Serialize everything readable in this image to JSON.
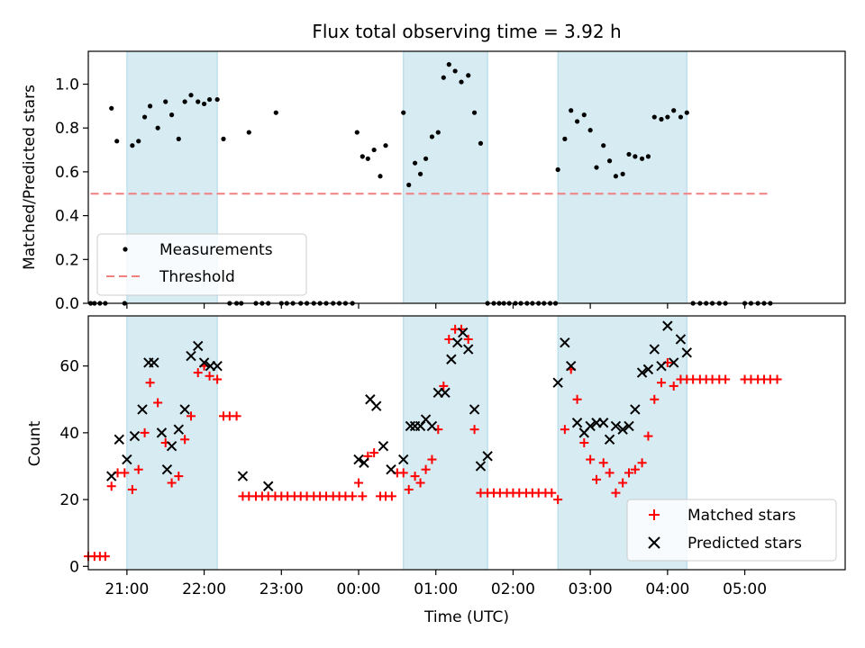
{
  "chart_data": [
    {
      "type": "scatter",
      "title": "Flux total observing time = 3.92 h",
      "xlabel": "",
      "ylabel": "Matched/Predicted stars",
      "xlim": [
        -3.5,
        6.3
      ],
      "ylim": [
        0,
        1.15
      ],
      "yticks": [
        0.0,
        0.2,
        0.4,
        0.6,
        0.8,
        1.0
      ],
      "ytick_labels": [
        "0.0",
        "0.2",
        "0.4",
        "0.6",
        "0.8",
        "1.0"
      ],
      "shaded_intervals": [
        [
          -3.0,
          -1.83
        ],
        [
          0.58,
          1.67
        ],
        [
          2.58,
          4.25
        ]
      ],
      "shade_color": "#add8e6",
      "legend": {
        "placement": "bottom-left",
        "entries": [
          "Measurements",
          "Threshold"
        ]
      },
      "threshold": {
        "name": "Threshold",
        "value": 0.5,
        "x_range": [
          -3.47,
          5.35
        ],
        "color": "#f08080"
      },
      "series": [
        {
          "name": "Measurements",
          "marker": "dot",
          "color": "#000000",
          "x": [
            -3.47,
            -3.42,
            -3.35,
            -3.28,
            -3.2,
            -3.13,
            -3.03,
            -2.93,
            -2.85,
            -2.77,
            -2.7,
            -2.6,
            -2.5,
            -2.42,
            -2.33,
            -2.25,
            -2.17,
            -2.08,
            -2.0,
            -1.93,
            -1.83,
            -1.75,
            -1.67,
            -1.58,
            -1.52,
            -1.42,
            -1.33,
            -1.25,
            -1.17,
            -1.07,
            -1.0,
            -0.93,
            -0.85,
            -0.75,
            -0.67,
            -0.58,
            -0.5,
            -0.42,
            -0.33,
            -0.25,
            -0.17,
            -0.08,
            -0.02,
            0.05,
            0.12,
            0.2,
            0.28,
            0.35,
            0.58,
            0.65,
            0.73,
            0.8,
            0.87,
            0.95,
            1.03,
            1.1,
            1.17,
            1.25,
            1.33,
            1.42,
            1.5,
            1.58,
            1.67,
            1.75,
            1.82,
            1.88,
            1.95,
            2.03,
            2.1,
            2.18,
            2.25,
            2.33,
            2.4,
            2.48,
            2.55,
            2.58,
            2.67,
            2.75,
            2.83,
            2.92,
            3.0,
            3.08,
            3.17,
            3.25,
            3.33,
            3.42,
            3.5,
            3.58,
            3.67,
            3.75,
            3.83,
            3.92,
            4.0,
            4.08,
            4.17,
            4.25,
            4.33,
            4.42,
            4.5,
            4.58,
            4.67,
            4.75,
            5.0,
            5.08,
            5.17,
            5.25,
            5.33
          ],
          "y": [
            0,
            0,
            0,
            0,
            0.89,
            0.74,
            0,
            0.72,
            0.74,
            0.85,
            0.9,
            0.8,
            0.92,
            0.86,
            0.75,
            0.92,
            0.95,
            0.92,
            0.91,
            0.93,
            0.93,
            0.75,
            0,
            0,
            0,
            0.78,
            0,
            0,
            0,
            0.87,
            0,
            0,
            0,
            0,
            0,
            0,
            0,
            0,
            0,
            0,
            0,
            0,
            0.78,
            0.67,
            0.66,
            0.7,
            0.58,
            0.72,
            0.87,
            0.54,
            0.64,
            0.59,
            0.66,
            0.76,
            0.78,
            1.03,
            1.09,
            1.06,
            1.01,
            1.04,
            0.87,
            0.73,
            0,
            0,
            0,
            0,
            0,
            0,
            0,
            0,
            0,
            0,
            0,
            0,
            0,
            0.61,
            0.75,
            0.88,
            0.83,
            0.86,
            0.79,
            0.62,
            0.72,
            0.65,
            0.58,
            0.59,
            0.68,
            0.67,
            0.66,
            0.67,
            0.85,
            0.84,
            0.85,
            0.88,
            0.85,
            0.87,
            0,
            0,
            0,
            0,
            0,
            0,
            0,
            0,
            0,
            0,
            0
          ]
        }
      ]
    },
    {
      "type": "scatter",
      "title": "",
      "xlabel": "Time (UTC)",
      "ylabel": "Count",
      "xlim": [
        -3.5,
        6.3
      ],
      "ylim": [
        -1,
        75
      ],
      "yticks": [
        0,
        20,
        40,
        60
      ],
      "ytick_labels": [
        "0",
        "20",
        "40",
        "60"
      ],
      "xticks": [
        -3,
        -2,
        -1,
        0,
        1,
        2,
        3,
        4,
        5
      ],
      "xtick_labels": [
        "21:00",
        "22:00",
        "23:00",
        "00:00",
        "01:00",
        "02:00",
        "03:00",
        "04:00",
        "05:00"
      ],
      "shaded_intervals": [
        [
          -3.0,
          -1.83
        ],
        [
          0.58,
          1.67
        ],
        [
          2.58,
          4.25
        ]
      ],
      "shade_color": "#add8e6",
      "legend": {
        "placement": "bottom-right",
        "entries": [
          "Matched stars",
          "Predicted stars"
        ]
      },
      "series": [
        {
          "name": "Matched stars",
          "marker": "plus",
          "color": "#ff0000",
          "x": [
            -3.5,
            -3.42,
            -3.35,
            -3.28,
            -3.2,
            -3.12,
            -3.03,
            -2.93,
            -2.85,
            -2.77,
            -2.7,
            -2.6,
            -2.5,
            -2.42,
            -2.33,
            -2.25,
            -2.17,
            -2.08,
            -2.0,
            -1.93,
            -1.83,
            -1.75,
            -1.67,
            -1.58,
            -1.5,
            -1.42,
            -1.33,
            -1.25,
            -1.17,
            -1.08,
            -1.0,
            -0.92,
            -0.83,
            -0.75,
            -0.67,
            -0.58,
            -0.5,
            -0.42,
            -0.33,
            -0.25,
            -0.17,
            -0.08,
            0.0,
            0.05,
            0.12,
            0.2,
            0.28,
            0.35,
            0.43,
            0.5,
            0.58,
            0.65,
            0.73,
            0.8,
            0.87,
            0.95,
            1.03,
            1.1,
            1.17,
            1.25,
            1.33,
            1.42,
            1.5,
            1.58,
            1.67,
            1.75,
            1.83,
            1.92,
            2.0,
            2.08,
            2.17,
            2.25,
            2.33,
            2.42,
            2.5,
            2.58,
            2.67,
            2.75,
            2.83,
            2.92,
            3.0,
            3.08,
            3.17,
            3.25,
            3.33,
            3.42,
            3.5,
            3.58,
            3.67,
            3.75,
            3.83,
            3.92,
            4.0,
            4.08,
            4.17,
            4.25,
            4.33,
            4.42,
            4.5,
            4.58,
            4.67,
            4.75,
            5.0,
            5.08,
            5.17,
            5.25,
            5.33,
            5.42
          ],
          "y": [
            3,
            3,
            3,
            3,
            24,
            28,
            28,
            23,
            29,
            40,
            55,
            49,
            37,
            25,
            27,
            38,
            45,
            58,
            60,
            57,
            56,
            45,
            45,
            45,
            21,
            21,
            21,
            21,
            21,
            21,
            21,
            21,
            21,
            21,
            21,
            21,
            21,
            21,
            21,
            21,
            21,
            21,
            25,
            21,
            33,
            34,
            21,
            21,
            21,
            28,
            28,
            23,
            27,
            25,
            29,
            32,
            41,
            54,
            68,
            71,
            71,
            68,
            41,
            22,
            22,
            22,
            22,
            22,
            22,
            22,
            22,
            22,
            22,
            22,
            22,
            20,
            41,
            59,
            50,
            37,
            32,
            26,
            31,
            28,
            22,
            25,
            28,
            29,
            31,
            39,
            50,
            55,
            61,
            54,
            56,
            56,
            56,
            56,
            56,
            56,
            56,
            56,
            56,
            56,
            56,
            56,
            56,
            56
          ]
        },
        {
          "name": "Predicted stars",
          "marker": "x",
          "color": "#000000",
          "x": [
            -3.2,
            -3.1,
            -3.0,
            -2.9,
            -2.8,
            -2.72,
            -2.65,
            -2.55,
            -2.48,
            -2.42,
            -2.33,
            -2.25,
            -2.17,
            -2.08,
            -2.0,
            -1.92,
            -1.83,
            -1.5,
            -1.17,
            0.0,
            0.07,
            0.15,
            0.23,
            0.32,
            0.42,
            0.58,
            0.67,
            0.73,
            0.8,
            0.87,
            0.95,
            1.03,
            1.12,
            1.2,
            1.28,
            1.35,
            1.42,
            1.5,
            1.58,
            1.67,
            2.58,
            2.67,
            2.75,
            2.83,
            2.92,
            3.0,
            3.08,
            3.17,
            3.25,
            3.33,
            3.42,
            3.5,
            3.58,
            3.67,
            3.75,
            3.83,
            3.92,
            4.0,
            4.08,
            4.17,
            4.25
          ],
          "y": [
            27,
            38,
            32,
            39,
            47,
            61,
            61,
            40,
            29,
            36,
            41,
            47,
            63,
            66,
            61,
            60,
            60,
            27,
            24,
            32,
            31,
            50,
            48,
            36,
            29,
            32,
            42,
            42,
            42,
            44,
            42,
            52,
            52,
            62,
            67,
            70,
            65,
            47,
            30,
            33,
            55,
            67,
            60,
            43,
            40,
            42,
            43,
            43,
            38,
            42,
            41,
            42,
            47,
            58,
            59,
            65,
            60,
            72,
            61,
            68,
            64
          ]
        }
      ]
    }
  ]
}
